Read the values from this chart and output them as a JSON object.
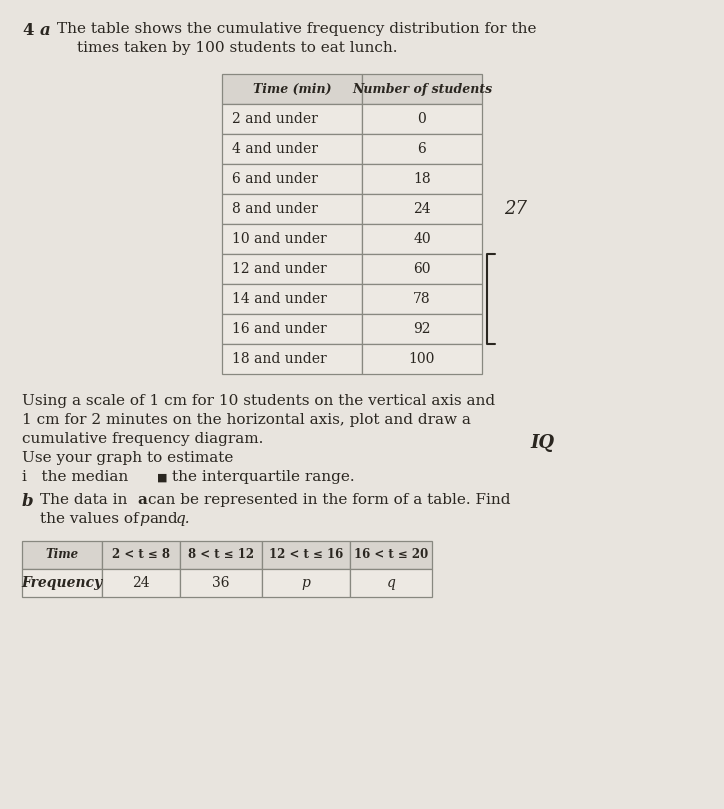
{
  "title_number": "4",
  "part_a_label": "a",
  "part_b_label": "b",
  "intro_text_line1": "The table shows the cumulative frequency distribution for the",
  "intro_text_line2": "times taken by 100 students to eat lunch.",
  "table1_headers": [
    "Time (min)",
    "Number of students"
  ],
  "table1_rows": [
    [
      "2 and under",
      "0"
    ],
    [
      "4 and under",
      "6"
    ],
    [
      "6 and under",
      "18"
    ],
    [
      "8 and under",
      "24"
    ],
    [
      "10 and under",
      "40"
    ],
    [
      "12 and under",
      "60"
    ],
    [
      "14 and under",
      "78"
    ],
    [
      "16 and under",
      "92"
    ],
    [
      "18 and under",
      "100"
    ]
  ],
  "body_text_line1": "Using a scale of 1 cm for 10 students on the vertical axis and",
  "body_text_line2": "1 cm for 2 minutes on the horizontal axis, plot and draw a",
  "body_text_line3": "cumulative frequency diagram.",
  "body_text_line4": "Use your graph to estimate",
  "body_text_i": "i   the median",
  "body_text_ii": "the interquartile range.",
  "part_b_text1": "The data in α can be represented in the form of a table. Find",
  "part_b_text2": "the values of p and q.",
  "table2_headers": [
    "Time",
    "2 < t ≤ 8",
    "8 < t ≤ 12",
    "12 < t ≤ 16",
    "16 < t ≤ 20"
  ],
  "table2_row_label": "Frequency",
  "table2_values": [
    "24",
    "36",
    "p",
    "q"
  ],
  "annotation_27": "27",
  "annotation_IQ": "IQ",
  "bg_color": "#e8e4de",
  "table_cell_bg": "#ede9e3",
  "table_header_bg": "#d8d4ce",
  "border_color": "#888880",
  "text_color": "#2a2620"
}
